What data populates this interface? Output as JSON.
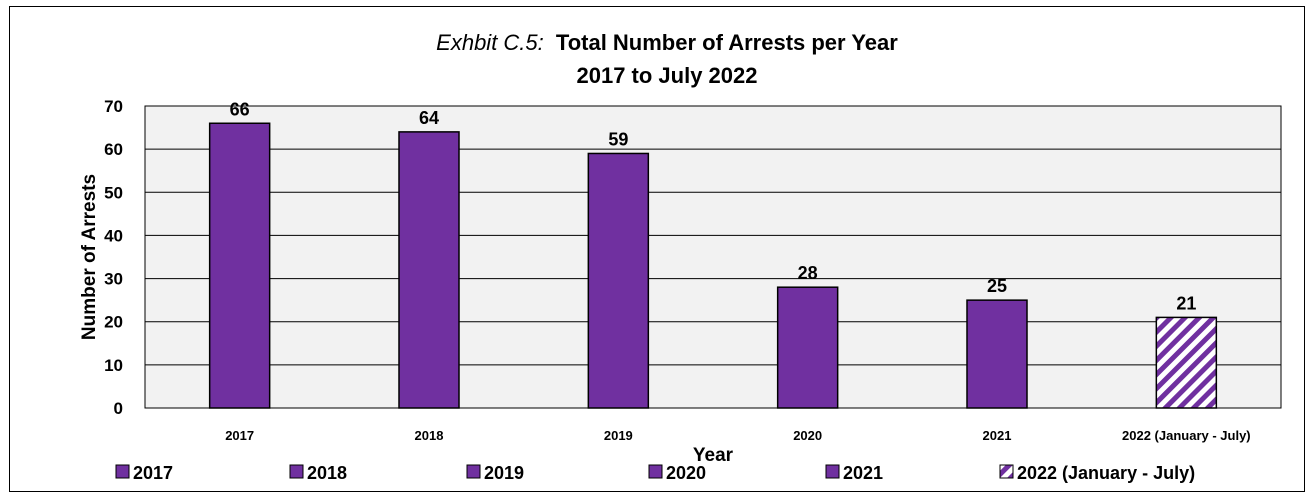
{
  "chart_data": {
    "type": "bar",
    "title_prefix": "Exhbit C.5:",
    "title_main": "Total Number of Arrests per Year",
    "subtitle": "2017 to July 2022",
    "xlabel": "Year",
    "ylabel": "Number  of Arrests",
    "ylim": [
      0,
      70
    ],
    "yticks": [
      0,
      10,
      20,
      30,
      40,
      50,
      60,
      70
    ],
    "grid": true,
    "legend_position": "bottom",
    "categories": [
      "2017",
      "2018",
      "2019",
      "2020",
      "2021",
      "2022 (January - July)"
    ],
    "values": [
      66,
      64,
      59,
      28,
      25,
      21
    ],
    "data_labels": [
      "66",
      "64",
      "59",
      "28",
      "25",
      "21"
    ],
    "legend": [
      "2017",
      "2018",
      "2019",
      "2020",
      "2021",
      "2022 (January - July)"
    ],
    "colors": {
      "bar": "#7030a0",
      "hatched_stripe": "#7030a0",
      "plot_background": "#f2f2f2"
    },
    "hatched_categories": [
      "2022 (January - July)"
    ]
  }
}
